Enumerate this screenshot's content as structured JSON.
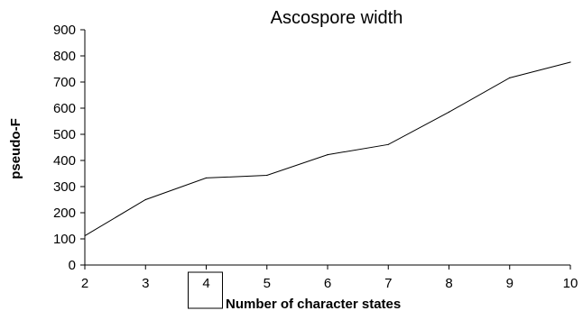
{
  "chart_data": {
    "type": "line",
    "title": "Ascospore width",
    "xlabel": "Number of character states",
    "ylabel": "pseudo-F",
    "x": [
      2,
      3,
      4,
      5,
      6,
      7,
      8,
      9,
      10
    ],
    "series": [
      {
        "values": [
          112,
          250,
          333,
          343,
          422,
          461,
          585,
          716,
          776
        ]
      }
    ],
    "xlim": [
      2,
      10
    ],
    "ylim": [
      0,
      900
    ],
    "yticks": [
      0,
      100,
      200,
      300,
      400,
      500,
      600,
      700,
      800,
      900
    ],
    "xticks": [
      2,
      3,
      4,
      5,
      6,
      7,
      8,
      9,
      10
    ],
    "grid": false,
    "legend": "none",
    "highlighted_tick": 4,
    "line_color": "#000000",
    "axis_color": "#000000"
  }
}
